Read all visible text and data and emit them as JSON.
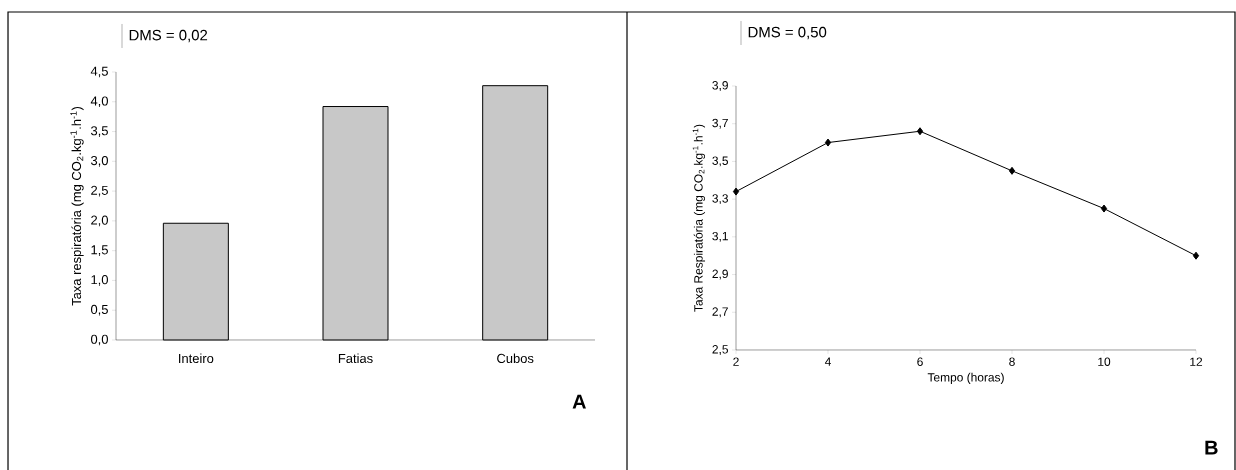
{
  "chart_data": [
    {
      "type": "bar",
      "categories": [
        "Inteiro",
        "Fatias",
        "Cubos"
      ],
      "values": [
        1.96,
        3.92,
        4.27
      ],
      "color": "#c8c8c8",
      "ylabel": "Taxa respiratória (mg CO$_{2}$.kg$^{-1}$.h$^{-1}$)",
      "ylim": [
        0,
        4.5
      ],
      "yticks": [
        {
          "value": 0,
          "label": "0,0"
        },
        {
          "value": 0.5,
          "label": "0,5"
        },
        {
          "value": 1,
          "label": "1,0"
        },
        {
          "value": 1.5,
          "label": "1,5"
        },
        {
          "value": 2,
          "label": "2,0"
        },
        {
          "value": 2.5,
          "label": "2,5"
        },
        {
          "value": 3,
          "label": "3,0"
        },
        {
          "value": 3.5,
          "label": "3,5"
        },
        {
          "value": 4,
          "label": "4,0"
        },
        {
          "value": 4.5,
          "label": "4,5"
        }
      ],
      "annotations": [
        "DMS = 0,02",
        "A"
      ]
    },
    {
      "type": "line",
      "x": [
        2,
        4,
        6,
        8,
        10,
        12
      ],
      "values": [
        3.34,
        3.6,
        3.66,
        3.45,
        3.25,
        3.0
      ],
      "color": "#000000",
      "marker": "diamond",
      "xlabel": "Tempo (horas)",
      "ylabel": "Taxa Respiratória (mg CO$_{2}$.kg$^{-1}$.h$^{-1}$)",
      "xlim": [
        2,
        12
      ],
      "xticks": [
        2,
        4,
        6,
        8,
        10,
        12
      ],
      "ylim": [
        2.5,
        3.9
      ],
      "yticks": [
        {
          "value": 2.5,
          "label": "2,5"
        },
        {
          "value": 2.7,
          "label": "2,7"
        },
        {
          "value": 2.9,
          "label": "2,9"
        },
        {
          "value": 3.1,
          "label": "3,1"
        },
        {
          "value": 3.3,
          "label": "3,3"
        },
        {
          "value": 3.5,
          "label": "3,5"
        },
        {
          "value": 3.7,
          "label": "3,7"
        },
        {
          "value": 3.9,
          "label": "3,9"
        }
      ],
      "annotations": [
        "DMS = 0,50",
        "B"
      ]
    }
  ]
}
